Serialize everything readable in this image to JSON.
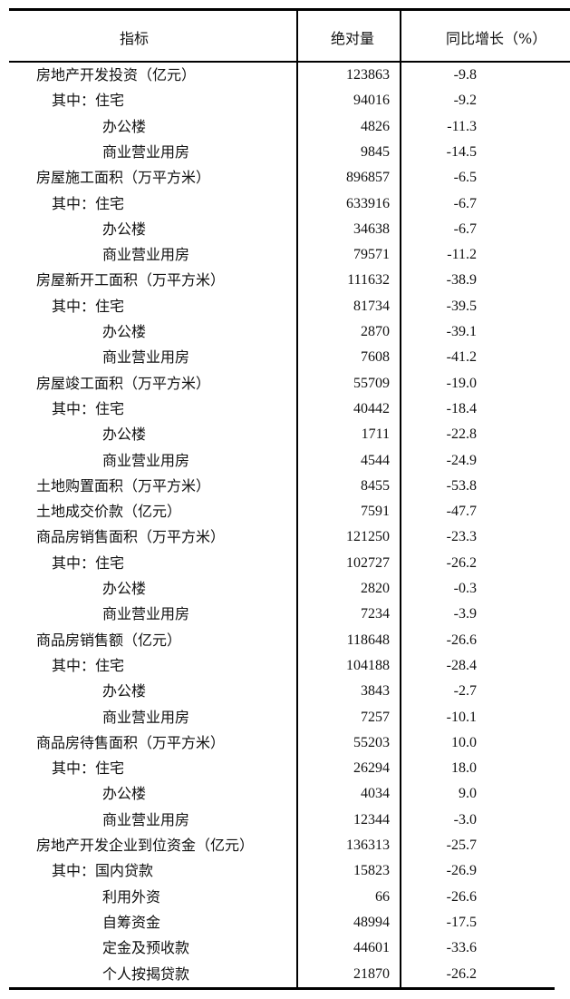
{
  "header": {
    "indicator": "指标",
    "absolute": "绝对量",
    "yoy": "同比增长（%）"
  },
  "rows": [
    {
      "level": 0,
      "label": "房地产开发投资（亿元）",
      "value": "123863",
      "yoy": "-9.8"
    },
    {
      "level": 1,
      "label": "其中：住宅",
      "value": "94016",
      "yoy": "-9.2"
    },
    {
      "level": 2,
      "label": "办公楼",
      "value": "4826",
      "yoy": "-11.3"
    },
    {
      "level": 2,
      "label": "商业营业用房",
      "value": "9845",
      "yoy": "-14.5"
    },
    {
      "level": 0,
      "label": "房屋施工面积（万平方米）",
      "value": "896857",
      "yoy": "-6.5"
    },
    {
      "level": 1,
      "label": "其中：住宅",
      "value": "633916",
      "yoy": "-6.7"
    },
    {
      "level": 2,
      "label": "办公楼",
      "value": "34638",
      "yoy": "-6.7"
    },
    {
      "level": 2,
      "label": "商业营业用房",
      "value": "79571",
      "yoy": "-11.2"
    },
    {
      "level": 0,
      "label": "房屋新开工面积（万平方米）",
      "value": "111632",
      "yoy": "-38.9"
    },
    {
      "level": 1,
      "label": "其中：住宅",
      "value": "81734",
      "yoy": "-39.5"
    },
    {
      "level": 2,
      "label": "办公楼",
      "value": "2870",
      "yoy": "-39.1"
    },
    {
      "level": 2,
      "label": "商业营业用房",
      "value": "7608",
      "yoy": "-41.2"
    },
    {
      "level": 0,
      "label": "房屋竣工面积（万平方米）",
      "value": "55709",
      "yoy": "-19.0"
    },
    {
      "level": 1,
      "label": "其中：住宅",
      "value": "40442",
      "yoy": "-18.4"
    },
    {
      "level": 2,
      "label": "办公楼",
      "value": "1711",
      "yoy": "-22.8"
    },
    {
      "level": 2,
      "label": "商业营业用房",
      "value": "4544",
      "yoy": "-24.9"
    },
    {
      "level": 0,
      "label": "土地购置面积（万平方米）",
      "value": "8455",
      "yoy": "-53.8"
    },
    {
      "level": 0,
      "label": "土地成交价款（亿元）",
      "value": "7591",
      "yoy": "-47.7"
    },
    {
      "level": 0,
      "label": "商品房销售面积（万平方米）",
      "value": "121250",
      "yoy": "-23.3"
    },
    {
      "level": 1,
      "label": "其中：住宅",
      "value": "102727",
      "yoy": "-26.2"
    },
    {
      "level": 2,
      "label": "办公楼",
      "value": "2820",
      "yoy": "-0.3"
    },
    {
      "level": 2,
      "label": "商业营业用房",
      "value": "7234",
      "yoy": "-3.9"
    },
    {
      "level": 0,
      "label": "商品房销售额（亿元）",
      "value": "118648",
      "yoy": "-26.6"
    },
    {
      "level": 1,
      "label": "其中：住宅",
      "value": "104188",
      "yoy": "-28.4"
    },
    {
      "level": 2,
      "label": "办公楼",
      "value": "3843",
      "yoy": "-2.7"
    },
    {
      "level": 2,
      "label": "商业营业用房",
      "value": "7257",
      "yoy": "-10.1"
    },
    {
      "level": 0,
      "label": "商品房待售面积（万平方米）",
      "value": "55203",
      "yoy": "10.0"
    },
    {
      "level": 1,
      "label": "其中：住宅",
      "value": "26294",
      "yoy": "18.0"
    },
    {
      "level": 2,
      "label": "办公楼",
      "value": "4034",
      "yoy": "9.0"
    },
    {
      "level": 2,
      "label": "商业营业用房",
      "value": "12344",
      "yoy": "-3.0"
    },
    {
      "level": 0,
      "label": "房地产开发企业到位资金（亿元）",
      "value": "136313",
      "yoy": "-25.7"
    },
    {
      "level": 1,
      "label": "其中：国内贷款",
      "value": "15823",
      "yoy": "-26.9"
    },
    {
      "level": 2,
      "label": "利用外资",
      "value": "66",
      "yoy": "-26.6"
    },
    {
      "level": 2,
      "label": "自筹资金",
      "value": "48994",
      "yoy": "-17.5"
    },
    {
      "level": 2,
      "label": "定金及预收款",
      "value": "44601",
      "yoy": "-33.6"
    },
    {
      "level": 2,
      "label": "个人按揭贷款",
      "value": "21870",
      "yoy": "-26.2"
    }
  ]
}
